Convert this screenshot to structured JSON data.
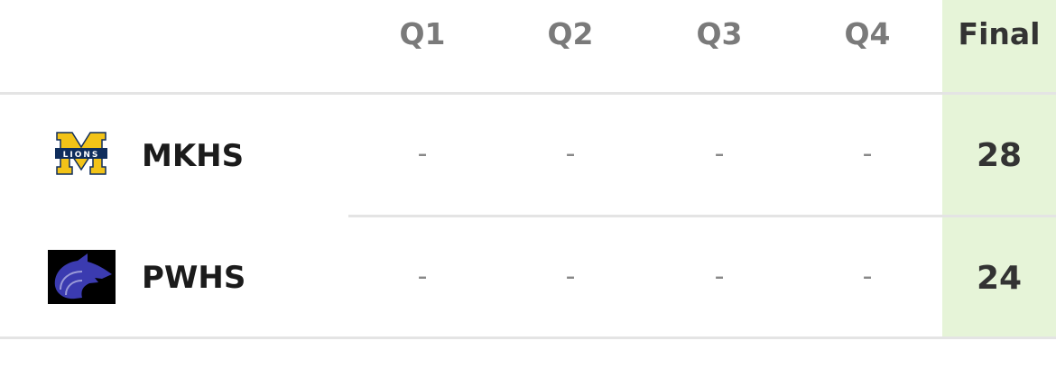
{
  "header": {
    "columns": [
      "Q1",
      "Q2",
      "Q3",
      "Q4"
    ],
    "final": "Final"
  },
  "teams": [
    {
      "name": "MKHS",
      "logo": "lions-m-logo",
      "quarters": [
        "-",
        "-",
        "-",
        "-"
      ],
      "final": "28",
      "logo_text": "LIONS"
    },
    {
      "name": "PWHS",
      "logo": "wolf-logo",
      "quarters": [
        "-",
        "-",
        "-",
        "-"
      ],
      "final": "24"
    }
  ],
  "colors": {
    "final_column": "#e6f4d8",
    "lions_gold": "#f2c318",
    "lions_navy": "#0f2d5c",
    "wolf_blue": "#3b3bb0"
  }
}
